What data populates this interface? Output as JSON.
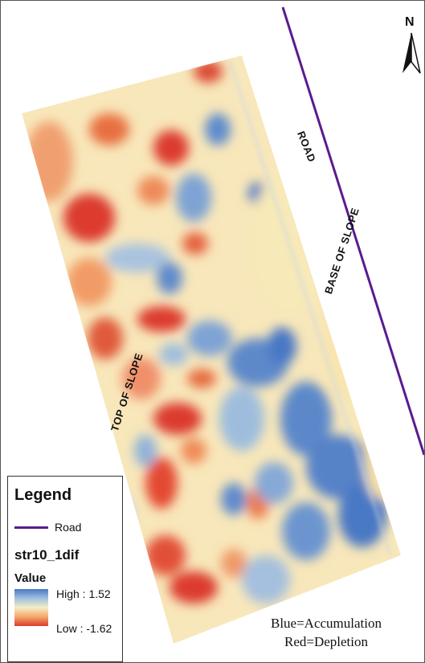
{
  "map": {
    "labels": {
      "road": "ROAD",
      "base_of_slope": "BASE OF SLOPE",
      "top_of_slope": "TOP OF SLOPE"
    },
    "north_arrow": "N",
    "road_color": "#5b1a8f"
  },
  "legend": {
    "title": "Legend",
    "road_entry": "Road",
    "layer_name": "str10_1dif",
    "value_heading": "Value",
    "high_label": "High : 1.52",
    "low_label": "Low : -1.62",
    "ramp_colors": [
      "#4a78c4",
      "#9fc0df",
      "#f6edc6",
      "#f3a86a",
      "#dc3a2e"
    ]
  },
  "note": {
    "line1": "Blue=Accumulation",
    "line2": "Red=Depletion"
  }
}
